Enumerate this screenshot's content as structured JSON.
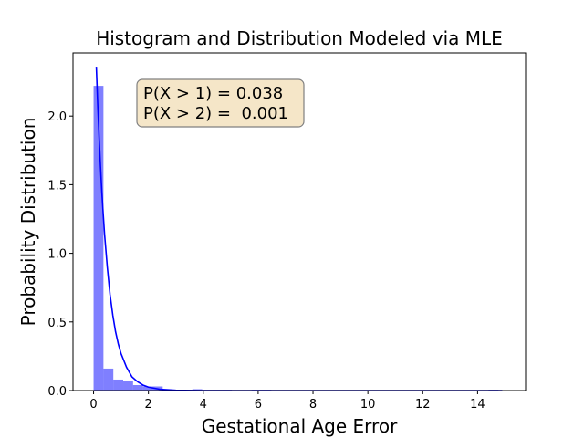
{
  "chart_data": {
    "type": "bar",
    "title": "Histogram and Distribution Modeled via MLE",
    "xlabel": "Gestational Age Error",
    "ylabel": "Probability Distribution",
    "xlim": [
      -0.75,
      15.75
    ],
    "ylim": [
      0,
      2.46
    ],
    "x_ticks": [
      0,
      2,
      4,
      6,
      8,
      10,
      12,
      14
    ],
    "x_tick_labels": [
      "0",
      "2",
      "4",
      "6",
      "8",
      "10",
      "12",
      "14"
    ],
    "y_ticks": [
      0.0,
      0.5,
      1.0,
      1.5,
      2.0
    ],
    "y_tick_labels": [
      "0.0",
      "0.5",
      "1.0",
      "1.5",
      "2.0"
    ],
    "grid": false,
    "histogram": {
      "color": "#0000ff",
      "alpha": 0.5,
      "bins": [
        {
          "x0": 0.0,
          "x1": 0.36,
          "value": 2.22
        },
        {
          "x0": 0.36,
          "x1": 0.72,
          "value": 0.16
        },
        {
          "x0": 0.72,
          "x1": 1.08,
          "value": 0.08
        },
        {
          "x0": 1.08,
          "x1": 1.44,
          "value": 0.07
        },
        {
          "x0": 1.44,
          "x1": 1.8,
          "value": 0.04
        },
        {
          "x0": 1.8,
          "x1": 2.16,
          "value": 0.03
        },
        {
          "x0": 2.16,
          "x1": 2.52,
          "value": 0.03
        },
        {
          "x0": 2.52,
          "x1": 2.88,
          "value": 0.005
        },
        {
          "x0": 2.88,
          "x1": 3.24,
          "value": 0.005
        },
        {
          "x0": 3.24,
          "x1": 3.6,
          "value": 0.005
        },
        {
          "x0": 3.6,
          "x1": 3.96,
          "value": 0.01
        },
        {
          "x0": 3.96,
          "x1": 4.32,
          "value": 0.005
        },
        {
          "x0": 4.32,
          "x1": 4.68,
          "value": 0.005
        },
        {
          "x0": 4.68,
          "x1": 5.04,
          "value": 0.005
        },
        {
          "x0": 5.76,
          "x1": 6.12,
          "value": 0.005
        },
        {
          "x0": 6.12,
          "x1": 6.48,
          "value": 0.005
        },
        {
          "x0": 14.4,
          "x1": 14.76,
          "value": 0.003
        }
      ]
    },
    "curve": {
      "color": "#0000ff",
      "points": [
        [
          0.1,
          2.36
        ],
        [
          0.15,
          2.09
        ],
        [
          0.2,
          1.85
        ],
        [
          0.25,
          1.64
        ],
        [
          0.3,
          1.45
        ],
        [
          0.35,
          1.29
        ],
        [
          0.4,
          1.14
        ],
        [
          0.5,
          0.9
        ],
        [
          0.6,
          0.7
        ],
        [
          0.7,
          0.55
        ],
        [
          0.8,
          0.43
        ],
        [
          0.9,
          0.34
        ],
        [
          1.0,
          0.27
        ],
        [
          1.2,
          0.17
        ],
        [
          1.4,
          0.1
        ],
        [
          1.6,
          0.065
        ],
        [
          1.8,
          0.04
        ],
        [
          2.0,
          0.025
        ],
        [
          2.4,
          0.01
        ],
        [
          3.0,
          0.002
        ],
        [
          4.0,
          0.0
        ],
        [
          6.0,
          0.0
        ],
        [
          10.0,
          0.0
        ],
        [
          14.9,
          0.0
        ]
      ]
    },
    "annotation": {
      "lines": [
        "P(X > 1) = 0.038",
        "P(X > 2) =  0.001"
      ],
      "box_fill": "#f5e6c8",
      "box_edge": "#808080"
    }
  }
}
